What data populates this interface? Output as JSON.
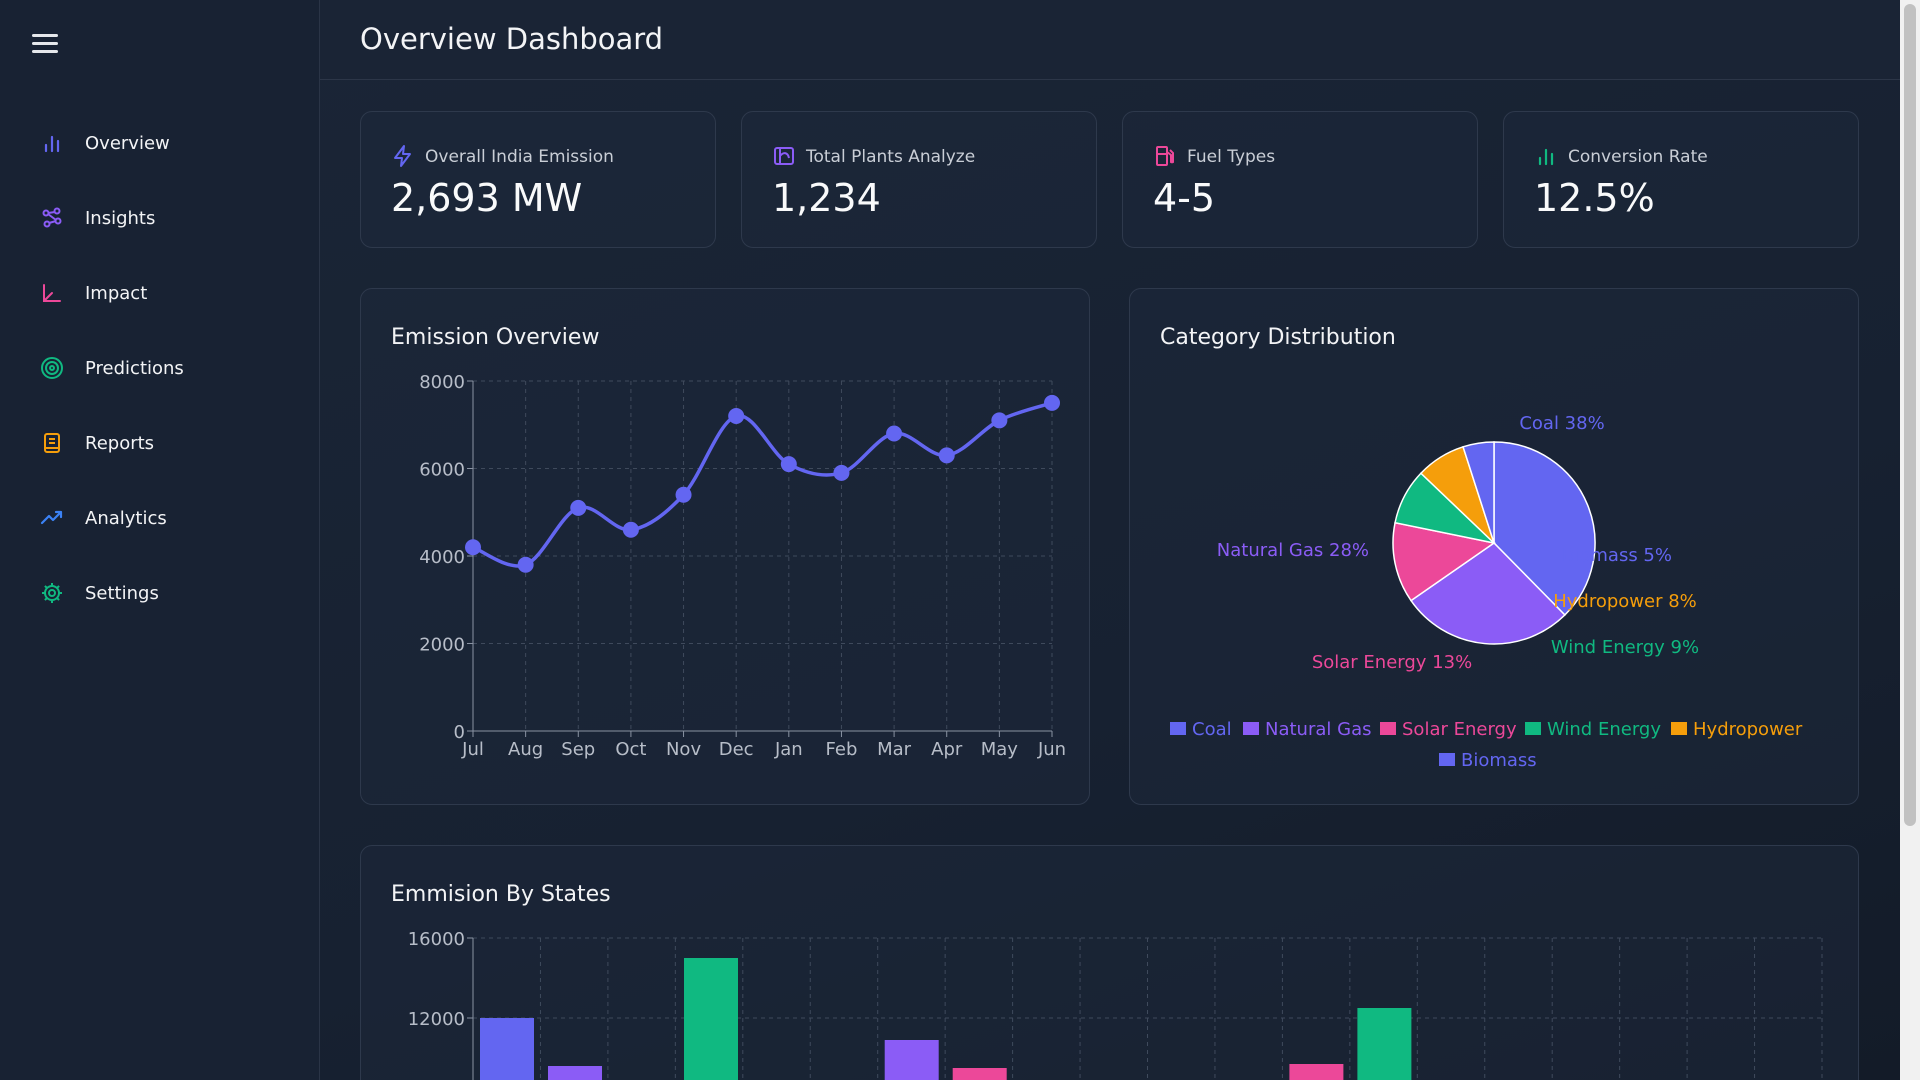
{
  "sidebar": {
    "items": [
      {
        "label": "Overview",
        "icon": "bar-chart-icon",
        "color": "#6366f1"
      },
      {
        "label": "Insights",
        "icon": "network-icon",
        "color": "#8b5cf6"
      },
      {
        "label": "Impact",
        "icon": "axis-chart-icon",
        "color": "#ec4899"
      },
      {
        "label": "Predictions",
        "icon": "target-icon",
        "color": "#10b981"
      },
      {
        "label": "Reports",
        "icon": "document-icon",
        "color": "#f59e0b"
      },
      {
        "label": "Analytics",
        "icon": "trending-up-icon",
        "color": "#3b82f6"
      },
      {
        "label": "Settings",
        "icon": "gear-icon",
        "color": "#10b981"
      }
    ]
  },
  "header": {
    "title": "Overview Dashboard"
  },
  "stats": [
    {
      "label": "Overall India Emission",
      "value": "2,693 MW",
      "icon": "lightning-icon",
      "color": "#6366f1"
    },
    {
      "label": "Total Plants Analyze",
      "value": "1,234",
      "icon": "plant-icon",
      "color": "#8b5cf6"
    },
    {
      "label": "Fuel Types",
      "value": "4-5",
      "icon": "fuel-pump-icon",
      "color": "#ec4899"
    },
    {
      "label": "Conversion Rate",
      "value": "12.5%",
      "icon": "bar-chart-icon",
      "color": "#10b981"
    }
  ],
  "line_card": {
    "title": "Emission Overview"
  },
  "pie_card": {
    "title": "Category Distribution"
  },
  "bar_card": {
    "title": "Emmision By States"
  },
  "chart_data": [
    {
      "type": "line",
      "x": [
        "Jul",
        "Aug",
        "Sep",
        "Oct",
        "Nov",
        "Dec",
        "Jan",
        "Feb",
        "Mar",
        "Apr",
        "May",
        "Jun"
      ],
      "values": [
        4200,
        3800,
        5100,
        4600,
        5400,
        7200,
        6100,
        5900,
        6800,
        6300,
        7100,
        7500
      ],
      "yticks": [
        0,
        2000,
        4000,
        6000,
        8000
      ],
      "ylim": [
        0,
        8000
      ],
      "grid": true,
      "color": "#6366f1"
    },
    {
      "type": "pie",
      "slices": [
        {
          "label": "Coal",
          "value": 38,
          "color": "#6366f1"
        },
        {
          "label": "Natural Gas",
          "value": 28,
          "color": "#8b5cf6"
        },
        {
          "label": "Solar Energy",
          "value": 13,
          "color": "#ec4899"
        },
        {
          "label": "Wind Energy",
          "value": 9,
          "color": "#10b981"
        },
        {
          "label": "Hydropower",
          "value": 8,
          "color": "#f59e0b"
        },
        {
          "label": "Biomass",
          "value": 5,
          "color": "#6366f1"
        }
      ],
      "legend_position": "bottom"
    },
    {
      "type": "bar",
      "yticks": [
        12000,
        16000
      ],
      "ylim": [
        8000,
        16000
      ],
      "grid": true,
      "visible_bars": [
        {
          "group": 0,
          "value": 12000,
          "color": "#6366f1"
        },
        {
          "group": 0,
          "value": 9600,
          "color": "#8b5cf6"
        },
        {
          "group": 0,
          "value": 15000,
          "color": "#10b981"
        },
        {
          "group": 3,
          "value": 10900,
          "color": "#8b5cf6"
        },
        {
          "group": 3,
          "value": 9500,
          "color": "#ec4899"
        },
        {
          "group": 6,
          "value": 9700,
          "color": "#ec4899"
        },
        {
          "group": 6,
          "value": 12500,
          "color": "#10b981"
        }
      ]
    }
  ]
}
